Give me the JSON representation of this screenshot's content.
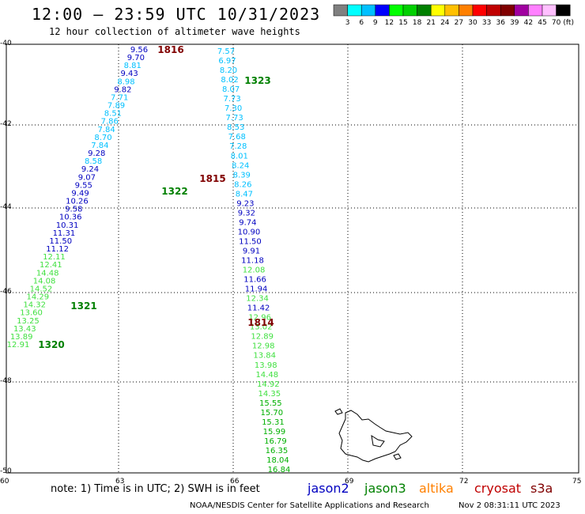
{
  "header": {
    "title": "12:00 — 23:59 UTC 10/31/2023",
    "subtitle": "12 hour collection of altimeter wave heights"
  },
  "legend": {
    "colors": [
      "#808080",
      "#00ffff",
      "#00c0ff",
      "#0000ff",
      "#00ff00",
      "#00d000",
      "#008000",
      "#ffff00",
      "#ffc000",
      "#ff8000",
      "#ff0000",
      "#c00000",
      "#800000",
      "#a000a0",
      "#ff80ff",
      "#ffc0ff",
      "#000000"
    ],
    "labels": [
      "3",
      "6",
      "9",
      "12",
      "15",
      "18",
      "21",
      "24",
      "27",
      "30",
      "33",
      "36",
      "39",
      "42",
      "45",
      "70",
      "(ft)"
    ]
  },
  "axes": {
    "y_ticks": [
      "-40",
      "-42",
      "-44",
      "-46",
      "-48",
      "-50"
    ],
    "x_ticks": [
      "60",
      "63",
      "66",
      "69",
      "72",
      "75"
    ]
  },
  "pass_labels": [
    {
      "text": "1816",
      "color": "#800000"
    },
    {
      "text": "1323",
      "color": "#008000"
    },
    {
      "text": "1815",
      "color": "#800000"
    },
    {
      "text": "1322",
      "color": "#008000"
    },
    {
      "text": "1321",
      "color": "#008000"
    },
    {
      "text": "1320",
      "color": "#008000"
    },
    {
      "text": "1814",
      "color": "#800000"
    }
  ],
  "track_a": [
    {
      "v": "7.57",
      "c": "#00c0ff"
    },
    {
      "v": "6.97",
      "c": "#00c0ff"
    },
    {
      "v": "8.20",
      "c": "#00c0ff"
    },
    {
      "v": "8.02",
      "c": "#00c0ff"
    },
    {
      "v": "8.07",
      "c": "#00c0ff"
    },
    {
      "v": "7.73",
      "c": "#00c0ff"
    },
    {
      "v": "7.30",
      "c": "#00c0ff"
    },
    {
      "v": "7.73",
      "c": "#00c0ff"
    },
    {
      "v": "8.53",
      "c": "#00c0ff"
    },
    {
      "v": "7.68",
      "c": "#00c0ff"
    },
    {
      "v": "7.28",
      "c": "#00c0ff"
    },
    {
      "v": "8.01",
      "c": "#00c0ff"
    },
    {
      "v": "8.24",
      "c": "#00c0ff"
    },
    {
      "v": "8.39",
      "c": "#00c0ff"
    },
    {
      "v": "8.26",
      "c": "#00c0ff"
    },
    {
      "v": "8.47",
      "c": "#00c0ff"
    },
    {
      "v": "9.23",
      "c": "#0000c0"
    },
    {
      "v": "9.32",
      "c": "#0000c0"
    },
    {
      "v": "9.74",
      "c": "#0000c0"
    },
    {
      "v": "10.90",
      "c": "#0000c0"
    },
    {
      "v": "11.50",
      "c": "#0000c0"
    },
    {
      "v": "9.91",
      "c": "#0000c0"
    },
    {
      "v": "11.18",
      "c": "#0000c0"
    },
    {
      "v": "12.08",
      "c": "#40e040"
    },
    {
      "v": "11.66",
      "c": "#0000c0"
    },
    {
      "v": "11.94",
      "c": "#0000c0"
    },
    {
      "v": "12.34",
      "c": "#40e040"
    },
    {
      "v": "11.42",
      "c": "#0000c0"
    },
    {
      "v": "12.96",
      "c": "#40e040"
    },
    {
      "v": "13.02",
      "c": "#40e040"
    },
    {
      "v": "12.89",
      "c": "#40e040"
    },
    {
      "v": "12.98",
      "c": "#40e040"
    },
    {
      "v": "13.84",
      "c": "#40e040"
    },
    {
      "v": "13.98",
      "c": "#40e040"
    },
    {
      "v": "14.48",
      "c": "#40e040"
    },
    {
      "v": "14.92",
      "c": "#40e040"
    },
    {
      "v": "14.35",
      "c": "#40e040"
    },
    {
      "v": "15.55",
      "c": "#00b000"
    },
    {
      "v": "15.70",
      "c": "#00b000"
    },
    {
      "v": "15.31",
      "c": "#00b000"
    },
    {
      "v": "15.99",
      "c": "#00b000"
    },
    {
      "v": "16.79",
      "c": "#00b000"
    },
    {
      "v": "16.35",
      "c": "#00b000"
    },
    {
      "v": "18.04",
      "c": "#00b000"
    },
    {
      "v": "16.84",
      "c": "#00b000"
    }
  ],
  "track_b": [
    {
      "v": "9.56",
      "c": "#0000c0"
    },
    {
      "v": "9.70",
      "c": "#0000c0"
    },
    {
      "v": "8.81",
      "c": "#00c0ff"
    },
    {
      "v": "9.43",
      "c": "#0000c0"
    },
    {
      "v": "8.98",
      "c": "#00c0ff"
    },
    {
      "v": "9.82",
      "c": "#0000c0"
    },
    {
      "v": "7.71",
      "c": "#00c0ff"
    },
    {
      "v": "7.89",
      "c": "#00c0ff"
    },
    {
      "v": "8.51",
      "c": "#00c0ff"
    },
    {
      "v": "7.86",
      "c": "#00c0ff"
    },
    {
      "v": "7.84",
      "c": "#00c0ff"
    },
    {
      "v": "8.70",
      "c": "#00c0ff"
    },
    {
      "v": "7.84",
      "c": "#00c0ff"
    },
    {
      "v": "9.28",
      "c": "#0000c0"
    },
    {
      "v": "8.58",
      "c": "#00c0ff"
    },
    {
      "v": "9.24",
      "c": "#0000c0"
    },
    {
      "v": "9.07",
      "c": "#0000c0"
    },
    {
      "v": "9.55",
      "c": "#0000c0"
    },
    {
      "v": "9.49",
      "c": "#0000c0"
    },
    {
      "v": "10.26",
      "c": "#0000c0"
    },
    {
      "v": "9.58",
      "c": "#0000c0"
    },
    {
      "v": "10.36",
      "c": "#0000c0"
    },
    {
      "v": "10.31",
      "c": "#0000c0"
    },
    {
      "v": "11.31",
      "c": "#0000c0"
    },
    {
      "v": "11.50",
      "c": "#0000c0"
    },
    {
      "v": "11.12",
      "c": "#0000c0"
    },
    {
      "v": "12.11",
      "c": "#40e040"
    },
    {
      "v": "12.41",
      "c": "#40e040"
    },
    {
      "v": "14.48",
      "c": "#40e040"
    },
    {
      "v": "14.08",
      "c": "#40e040"
    },
    {
      "v": "14.52",
      "c": "#40e040"
    },
    {
      "v": "14.29",
      "c": "#40e040"
    },
    {
      "v": "14.32",
      "c": "#40e040"
    },
    {
      "v": "13.60",
      "c": "#40e040"
    },
    {
      "v": "13.25",
      "c": "#40e040"
    },
    {
      "v": "13.43",
      "c": "#40e040"
    },
    {
      "v": "13.89",
      "c": "#40e040"
    },
    {
      "v": "12.91",
      "c": "#40e040"
    }
  ],
  "footer": {
    "note": "note: 1) Time is in UTC; 2) SWH is in feet",
    "credit": "NOAA/NESDIS Center for Satellite Applications and Research",
    "timestamp": "Nov  2 08:31:11 UTC 2023"
  },
  "satellites": [
    {
      "name": "jason2",
      "color": "#0000c0"
    },
    {
      "name": "jason3",
      "color": "#008000"
    },
    {
      "name": "altika",
      "color": "#ff8000"
    },
    {
      "name": "cryosat",
      "color": "#c00000"
    },
    {
      "name": "s3a",
      "color": "#800000"
    }
  ]
}
